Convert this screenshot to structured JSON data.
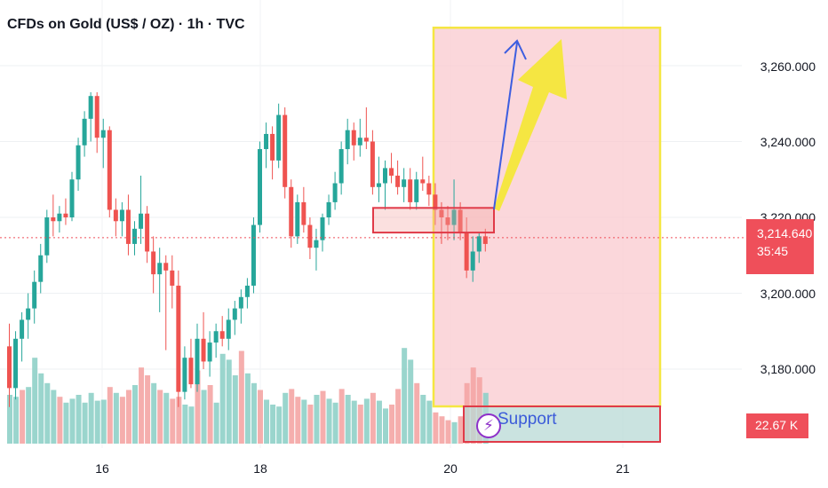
{
  "title": "CFDs on Gold (US$ / OZ) · 1h · TVC",
  "price_axis": [
    "3,260.000",
    "3,240.000",
    "3,220.000",
    "3,200.000",
    "3,180.000"
  ],
  "current_price": "3,214.640",
  "countdown": "35:45",
  "volume_label": "22.67 K",
  "support_label": "Support",
  "colors": {
    "up": "#26a69a",
    "down": "#ef5350",
    "zone_fill": "#f9c9cf",
    "zone_border": "#f5e642",
    "arrow_blue": "#3d5ee0",
    "arrow_yellow": "#f5e642"
  },
  "chart_data": {
    "type": "candlestick",
    "symbol": "CFDs on Gold (US$ / OZ)",
    "interval": "1h",
    "x_ticks": [
      "16",
      "18",
      "20",
      "21"
    ],
    "y_ticks": [
      3180,
      3200,
      3220,
      3240,
      3260
    ],
    "ylim": [
      3169,
      3271
    ],
    "last_price": 3214.64,
    "grid": true,
    "candles": [
      {
        "o": 3186,
        "h": 3192,
        "l": 3170,
        "c": 3175
      },
      {
        "o": 3175,
        "h": 3190,
        "l": 3172,
        "c": 3188
      },
      {
        "o": 3188,
        "h": 3195,
        "l": 3182,
        "c": 3193
      },
      {
        "o": 3193,
        "h": 3200,
        "l": 3188,
        "c": 3196
      },
      {
        "o": 3196,
        "h": 3206,
        "l": 3192,
        "c": 3203
      },
      {
        "o": 3203,
        "h": 3213,
        "l": 3200,
        "c": 3210
      },
      {
        "o": 3210,
        "h": 3222,
        "l": 3208,
        "c": 3220
      },
      {
        "o": 3220,
        "h": 3226,
        "l": 3215,
        "c": 3219
      },
      {
        "o": 3219,
        "h": 3223,
        "l": 3216,
        "c": 3221
      },
      {
        "o": 3221,
        "h": 3225,
        "l": 3218,
        "c": 3220
      },
      {
        "o": 3220,
        "h": 3232,
        "l": 3219,
        "c": 3230
      },
      {
        "o": 3230,
        "h": 3241,
        "l": 3227,
        "c": 3239
      },
      {
        "o": 3239,
        "h": 3248,
        "l": 3236,
        "c": 3246
      },
      {
        "o": 3246,
        "h": 3253,
        "l": 3240,
        "c": 3252
      },
      {
        "o": 3252,
        "h": 3253,
        "l": 3237,
        "c": 3241
      },
      {
        "o": 3241,
        "h": 3246,
        "l": 3233,
        "c": 3243
      },
      {
        "o": 3243,
        "h": 3244,
        "l": 3220,
        "c": 3222
      },
      {
        "o": 3222,
        "h": 3225,
        "l": 3215,
        "c": 3219
      },
      {
        "o": 3219,
        "h": 3224,
        "l": 3215,
        "c": 3222
      },
      {
        "o": 3222,
        "h": 3226,
        "l": 3210,
        "c": 3213
      },
      {
        "o": 3213,
        "h": 3219,
        "l": 3210,
        "c": 3217
      },
      {
        "o": 3217,
        "h": 3231,
        "l": 3213,
        "c": 3221
      },
      {
        "o": 3221,
        "h": 3223,
        "l": 3208,
        "c": 3211
      },
      {
        "o": 3211,
        "h": 3215,
        "l": 3200,
        "c": 3205
      },
      {
        "o": 3205,
        "h": 3212,
        "l": 3195,
        "c": 3208
      },
      {
        "o": 3208,
        "h": 3210,
        "l": 3185,
        "c": 3206
      },
      {
        "o": 3206,
        "h": 3210,
        "l": 3196,
        "c": 3202
      },
      {
        "o": 3202,
        "h": 3206,
        "l": 3170,
        "c": 3174
      },
      {
        "o": 3174,
        "h": 3186,
        "l": 3172,
        "c": 3183
      },
      {
        "o": 3183,
        "h": 3188,
        "l": 3175,
        "c": 3176
      },
      {
        "o": 3176,
        "h": 3192,
        "l": 3174,
        "c": 3188
      },
      {
        "o": 3188,
        "h": 3195,
        "l": 3180,
        "c": 3182
      },
      {
        "o": 3182,
        "h": 3190,
        "l": 3178,
        "c": 3187
      },
      {
        "o": 3187,
        "h": 3192,
        "l": 3183,
        "c": 3190
      },
      {
        "o": 3190,
        "h": 3194,
        "l": 3186,
        "c": 3188
      },
      {
        "o": 3188,
        "h": 3196,
        "l": 3185,
        "c": 3193
      },
      {
        "o": 3193,
        "h": 3198,
        "l": 3189,
        "c": 3196
      },
      {
        "o": 3196,
        "h": 3201,
        "l": 3192,
        "c": 3199
      },
      {
        "o": 3199,
        "h": 3204,
        "l": 3196,
        "c": 3202
      },
      {
        "o": 3202,
        "h": 3220,
        "l": 3200,
        "c": 3218
      },
      {
        "o": 3218,
        "h": 3240,
        "l": 3216,
        "c": 3238
      },
      {
        "o": 3238,
        "h": 3245,
        "l": 3233,
        "c": 3242
      },
      {
        "o": 3242,
        "h": 3244,
        "l": 3230,
        "c": 3235
      },
      {
        "o": 3235,
        "h": 3250,
        "l": 3233,
        "c": 3247
      },
      {
        "o": 3247,
        "h": 3249,
        "l": 3225,
        "c": 3228
      },
      {
        "o": 3228,
        "h": 3230,
        "l": 3212,
        "c": 3215
      },
      {
        "o": 3215,
        "h": 3226,
        "l": 3213,
        "c": 3224
      },
      {
        "o": 3224,
        "h": 3228,
        "l": 3216,
        "c": 3218
      },
      {
        "o": 3218,
        "h": 3220,
        "l": 3209,
        "c": 3212
      },
      {
        "o": 3212,
        "h": 3217,
        "l": 3206,
        "c": 3214
      },
      {
        "o": 3214,
        "h": 3221,
        "l": 3211,
        "c": 3220
      },
      {
        "o": 3220,
        "h": 3226,
        "l": 3218,
        "c": 3224
      },
      {
        "o": 3224,
        "h": 3232,
        "l": 3222,
        "c": 3229
      },
      {
        "o": 3229,
        "h": 3240,
        "l": 3226,
        "c": 3238
      },
      {
        "o": 3238,
        "h": 3246,
        "l": 3234,
        "c": 3243
      },
      {
        "o": 3243,
        "h": 3245,
        "l": 3235,
        "c": 3239
      },
      {
        "o": 3239,
        "h": 3246,
        "l": 3236,
        "c": 3241
      },
      {
        "o": 3241,
        "h": 3249,
        "l": 3238,
        "c": 3240
      },
      {
        "o": 3240,
        "h": 3243,
        "l": 3226,
        "c": 3228
      },
      {
        "o": 3228,
        "h": 3236,
        "l": 3224,
        "c": 3229
      },
      {
        "o": 3229,
        "h": 3235,
        "l": 3222,
        "c": 3233
      },
      {
        "o": 3233,
        "h": 3237,
        "l": 3229,
        "c": 3231
      },
      {
        "o": 3231,
        "h": 3235,
        "l": 3226,
        "c": 3228
      },
      {
        "o": 3228,
        "h": 3233,
        "l": 3224,
        "c": 3230
      },
      {
        "o": 3230,
        "h": 3233,
        "l": 3222,
        "c": 3224
      },
      {
        "o": 3224,
        "h": 3232,
        "l": 3222,
        "c": 3230
      },
      {
        "o": 3230,
        "h": 3236,
        "l": 3227,
        "c": 3229
      },
      {
        "o": 3229,
        "h": 3231,
        "l": 3223,
        "c": 3226
      },
      {
        "o": 3226,
        "h": 3229,
        "l": 3218,
        "c": 3222
      },
      {
        "o": 3222,
        "h": 3224,
        "l": 3213,
        "c": 3220
      },
      {
        "o": 3220,
        "h": 3223,
        "l": 3214,
        "c": 3218
      },
      {
        "o": 3218,
        "h": 3230,
        "l": 3214,
        "c": 3222
      },
      {
        "o": 3222,
        "h": 3224,
        "l": 3214,
        "c": 3216
      },
      {
        "o": 3216,
        "h": 3220,
        "l": 3204,
        "c": 3206
      },
      {
        "o": 3206,
        "h": 3215,
        "l": 3203,
        "c": 3211
      },
      {
        "o": 3211,
        "h": 3216,
        "l": 3208,
        "c": 3215
      },
      {
        "o": 3215,
        "h": 3217,
        "l": 3211,
        "c": 3213
      }
    ],
    "volume": [
      {
        "v": 0.5,
        "up": true
      },
      {
        "v": 0.48,
        "up": true
      },
      {
        "v": 0.55,
        "up": false
      },
      {
        "v": 0.58,
        "up": true
      },
      {
        "v": 0.88,
        "up": true
      },
      {
        "v": 0.72,
        "up": true
      },
      {
        "v": 0.62,
        "up": true
      },
      {
        "v": 0.55,
        "up": true
      },
      {
        "v": 0.48,
        "up": false
      },
      {
        "v": 0.42,
        "up": true
      },
      {
        "v": 0.46,
        "up": true
      },
      {
        "v": 0.5,
        "up": true
      },
      {
        "v": 0.42,
        "up": true
      },
      {
        "v": 0.52,
        "up": true
      },
      {
        "v": 0.44,
        "up": true
      },
      {
        "v": 0.45,
        "up": true
      },
      {
        "v": 0.58,
        "up": false
      },
      {
        "v": 0.52,
        "up": true
      },
      {
        "v": 0.48,
        "up": false
      },
      {
        "v": 0.55,
        "up": false
      },
      {
        "v": 0.6,
        "up": true
      },
      {
        "v": 0.78,
        "up": false
      },
      {
        "v": 0.7,
        "up": false
      },
      {
        "v": 0.62,
        "up": true
      },
      {
        "v": 0.55,
        "up": false
      },
      {
        "v": 0.52,
        "up": true
      },
      {
        "v": 0.46,
        "up": false
      },
      {
        "v": 0.48,
        "up": false
      },
      {
        "v": 0.4,
        "up": true
      },
      {
        "v": 0.38,
        "up": true
      },
      {
        "v": 0.75,
        "up": false
      },
      {
        "v": 0.55,
        "up": true
      },
      {
        "v": 0.6,
        "up": false
      },
      {
        "v": 0.42,
        "up": true
      },
      {
        "v": 0.92,
        "up": true
      },
      {
        "v": 0.86,
        "up": true
      },
      {
        "v": 0.7,
        "up": true
      },
      {
        "v": 0.95,
        "up": false
      },
      {
        "v": 0.72,
        "up": true
      },
      {
        "v": 0.62,
        "up": true
      },
      {
        "v": 0.55,
        "up": false
      },
      {
        "v": 0.45,
        "up": true
      },
      {
        "v": 0.4,
        "up": true
      },
      {
        "v": 0.38,
        "up": true
      },
      {
        "v": 0.52,
        "up": true
      },
      {
        "v": 0.56,
        "up": false
      },
      {
        "v": 0.48,
        "up": false
      },
      {
        "v": 0.45,
        "up": true
      },
      {
        "v": 0.4,
        "up": false
      },
      {
        "v": 0.5,
        "up": true
      },
      {
        "v": 0.54,
        "up": false
      },
      {
        "v": 0.46,
        "up": true
      },
      {
        "v": 0.42,
        "up": true
      },
      {
        "v": 0.56,
        "up": false
      },
      {
        "v": 0.5,
        "up": true
      },
      {
        "v": 0.44,
        "up": true
      },
      {
        "v": 0.4,
        "up": false
      },
      {
        "v": 0.46,
        "up": true
      },
      {
        "v": 0.52,
        "up": false
      },
      {
        "v": 0.44,
        "up": true
      },
      {
        "v": 0.36,
        "up": true
      },
      {
        "v": 0.4,
        "up": false
      },
      {
        "v": 0.56,
        "up": false
      },
      {
        "v": 0.98,
        "up": true
      },
      {
        "v": 0.86,
        "up": true
      },
      {
        "v": 0.62,
        "up": false
      },
      {
        "v": 0.5,
        "up": true
      },
      {
        "v": 0.44,
        "up": true
      },
      {
        "v": 0.32,
        "up": false
      },
      {
        "v": 0.28,
        "up": false
      },
      {
        "v": 0.24,
        "up": false
      },
      {
        "v": 0.22,
        "up": true
      },
      {
        "v": 0.28,
        "up": false
      },
      {
        "v": 0.62,
        "up": false
      },
      {
        "v": 0.78,
        "up": false
      },
      {
        "v": 0.68,
        "up": false
      },
      {
        "v": 0.52,
        "up": true
      }
    ],
    "annotations": [
      {
        "type": "rectangle",
        "label": "resistance zone",
        "y_range": [
          3216,
          3222.5
        ]
      },
      {
        "type": "rectangle",
        "label": "target zone",
        "y_range": [
          3170,
          3270
        ]
      },
      {
        "type": "arrow",
        "label": "blue arrow",
        "from_price": 3222,
        "to_price": 3268
      },
      {
        "type": "arrow",
        "label": "yellow arrow",
        "from_price": 3222,
        "to_price": 3268
      },
      {
        "type": "rectangle",
        "label": "Support"
      }
    ]
  }
}
